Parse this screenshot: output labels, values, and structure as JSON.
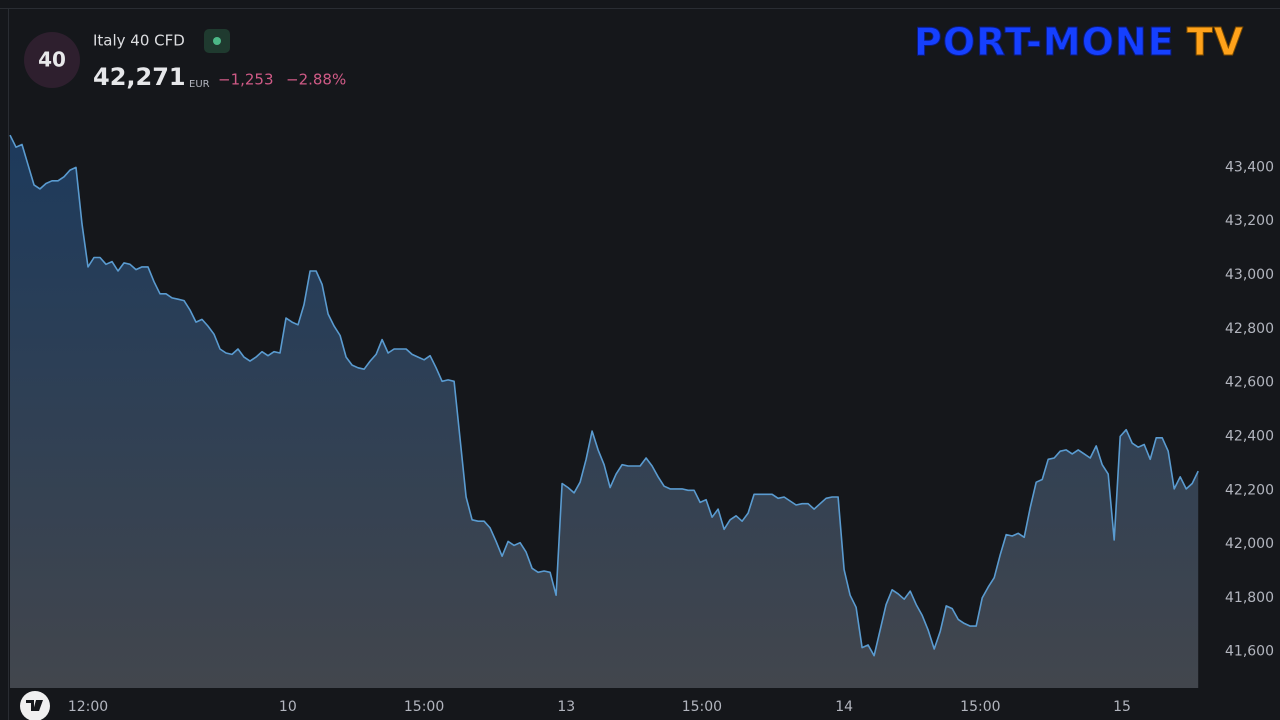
{
  "chart_data": {
    "type": "area",
    "badge": "40",
    "title": "Italy 40 CFD",
    "price": "42,271",
    "currency": "EUR",
    "change": "−1,253",
    "change_percent": "−2.88%",
    "watermark": [
      "PORT-MONE",
      "TV"
    ],
    "color": "#5a9bd0",
    "fill_top": "#1d3a5c",
    "fill_bottom": "#42464d",
    "change_color": "#cf5a86",
    "grid": false,
    "xlim": [
      0,
      198.3
    ],
    "xticks": [
      {
        "value": 13,
        "label": "12:00"
      },
      {
        "value": 46.3,
        "label": "10"
      },
      {
        "value": 69,
        "label": "15:00"
      },
      {
        "value": 92.7,
        "label": "13"
      },
      {
        "value": 115.3,
        "label": "15:00"
      },
      {
        "value": 139,
        "label": "14"
      },
      {
        "value": 161.7,
        "label": "15:00"
      },
      {
        "value": 185.3,
        "label": "15"
      }
    ],
    "ylim": [
      41465,
      43985
    ],
    "yticks": [
      {
        "value": 41600,
        "label": "41,600"
      },
      {
        "value": 41800,
        "label": "41,800"
      },
      {
        "value": 42000,
        "label": "42,000"
      },
      {
        "value": 42200,
        "label": "42,200"
      },
      {
        "value": 42400,
        "label": "42,400"
      },
      {
        "value": 42600,
        "label": "42,600"
      },
      {
        "value": 42800,
        "label": "42,800"
      },
      {
        "value": 43000,
        "label": "43,000"
      },
      {
        "value": 43200,
        "label": "43,200"
      },
      {
        "value": 43400,
        "label": "43,400"
      }
    ],
    "values": [
      43520,
      43475,
      43485,
      43410,
      43335,
      43320,
      43340,
      43350,
      43350,
      43365,
      43390,
      43400,
      43190,
      43030,
      43065,
      43065,
      43040,
      43050,
      43015,
      43045,
      43040,
      43020,
      43030,
      43030,
      42975,
      42930,
      42930,
      42915,
      42910,
      42905,
      42870,
      42825,
      42835,
      42810,
      42780,
      42725,
      42710,
      42705,
      42725,
      42695,
      42680,
      42695,
      42715,
      42700,
      42715,
      42710,
      42840,
      42825,
      42815,
      42890,
      43015,
      43015,
      42965,
      42855,
      42810,
      42775,
      42695,
      42665,
      42655,
      42650,
      42680,
      42705,
      42760,
      42710,
      42725,
      42725,
      42725,
      42705,
      42695,
      42685,
      42700,
      42655,
      42605,
      42610,
      42605,
      42390,
      42175,
      42090,
      42085,
      42085,
      42060,
      42010,
      41955,
      42010,
      41995,
      42005,
      41970,
      41910,
      41895,
      41900,
      41895,
      41810,
      42225,
      42210,
      42190,
      42230,
      42315,
      42420,
      42350,
      42295,
      42210,
      42260,
      42295,
      42290,
      42290,
      42290,
      42320,
      42290,
      42250,
      42215,
      42205,
      42205,
      42205,
      42200,
      42200,
      42155,
      42165,
      42100,
      42130,
      42055,
      42090,
      42105,
      42085,
      42115,
      42185,
      42185,
      42185,
      42185,
      42170,
      42175,
      42160,
      42145,
      42150,
      42150,
      42130,
      42150,
      42170,
      42175,
      42175,
      41905,
      41810,
      41765,
      41615,
      41625,
      41585,
      41680,
      41775,
      41830,
      41815,
      41795,
      41825,
      41775,
      41735,
      41680,
      41610,
      41675,
      41770,
      41760,
      41720,
      41705,
      41695,
      41695,
      41800,
      41840,
      41875,
      41960,
      42035,
      42030,
      42040,
      42025,
      42135,
      42230,
      42240,
      42315,
      42320,
      42345,
      42350,
      42335,
      42350,
      42335,
      42320,
      42365,
      42295,
      42260,
      42015,
      42400,
      42425,
      42375,
      42360,
      42370,
      42315,
      42395,
      42395,
      42345,
      42205,
      42250,
      42205,
      42225,
      42271
    ]
  }
}
